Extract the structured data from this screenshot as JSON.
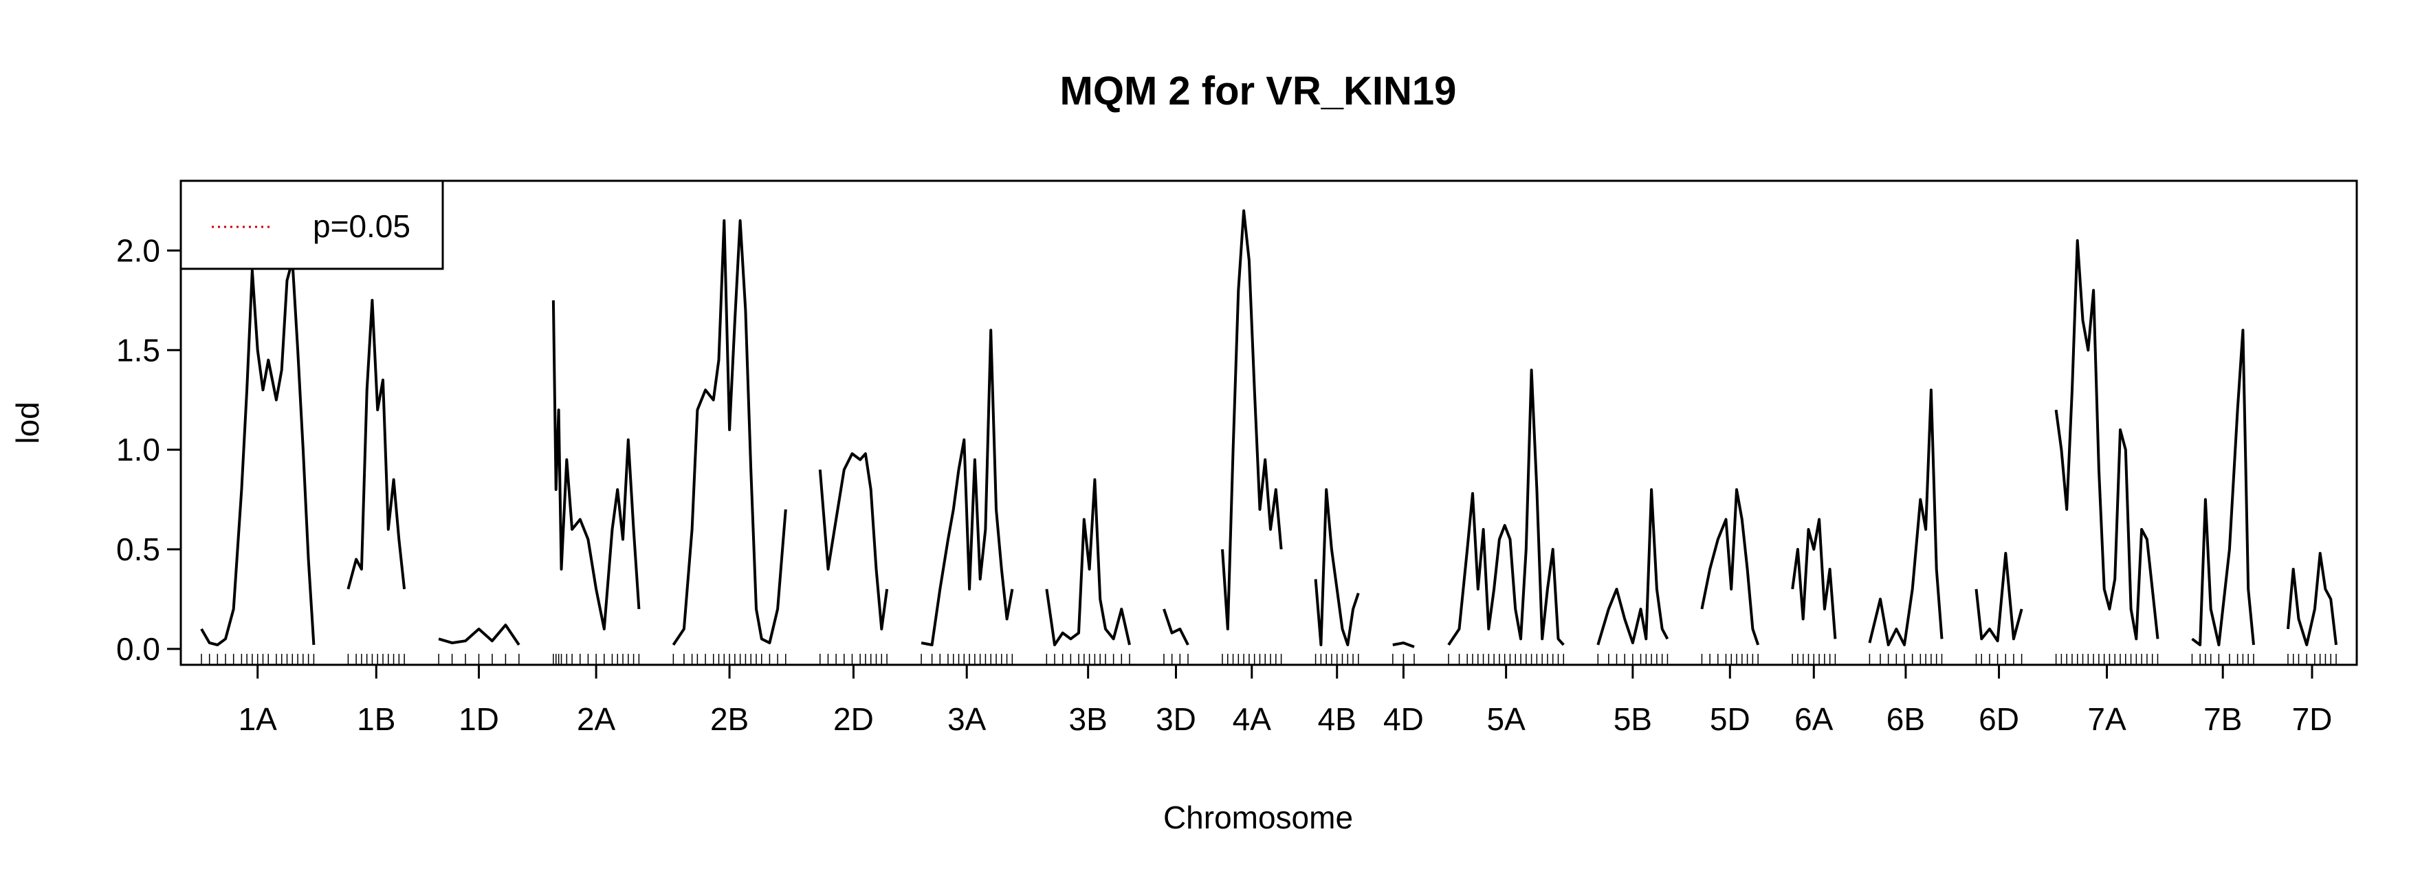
{
  "chart_data": {
    "type": "line",
    "title": "MQM 2 for VR_KIN19",
    "xlabel": "Chromosome",
    "ylabel": "lod",
    "ylim": [
      -0.08,
      2.35
    ],
    "yticks": [
      "0.0",
      "0.5",
      "1.0",
      "1.5",
      "2.0"
    ],
    "legend": {
      "position": "top-left",
      "label": "p=0.05",
      "line_style": "dotted",
      "color": "#cc0000"
    },
    "colors": {
      "line": "#000000",
      "threshold": "#cc0000"
    },
    "chromosomes": [
      {
        "name": "1A",
        "pts": [
          [
            0,
            0.1
          ],
          [
            3,
            0.03
          ],
          [
            6,
            0.02
          ],
          [
            9,
            0.05
          ],
          [
            12,
            0.2
          ],
          [
            15,
            0.8
          ],
          [
            17,
            1.3
          ],
          [
            19,
            1.9
          ],
          [
            21,
            1.5
          ],
          [
            23,
            1.3
          ],
          [
            25,
            1.45
          ],
          [
            28,
            1.25
          ],
          [
            30,
            1.4
          ],
          [
            32,
            1.85
          ],
          [
            34,
            1.95
          ],
          [
            36,
            1.5
          ],
          [
            38,
            1.0
          ],
          [
            40,
            0.45
          ],
          [
            42,
            0.02
          ]
        ]
      },
      {
        "name": "1B",
        "pts": [
          [
            0,
            0.3
          ],
          [
            3,
            0.45
          ],
          [
            5,
            0.4
          ],
          [
            7,
            1.3
          ],
          [
            9,
            1.75
          ],
          [
            11,
            1.2
          ],
          [
            13,
            1.35
          ],
          [
            15,
            0.6
          ],
          [
            17,
            0.85
          ],
          [
            19,
            0.55
          ],
          [
            21,
            0.3
          ]
        ]
      },
      {
        "name": "1D",
        "pts": [
          [
            0,
            0.05
          ],
          [
            5,
            0.03
          ],
          [
            10,
            0.04
          ],
          [
            15,
            0.1
          ],
          [
            20,
            0.04
          ],
          [
            25,
            0.12
          ],
          [
            30,
            0.02
          ]
        ]
      },
      {
        "name": "2A",
        "pts": [
          [
            0,
            1.75
          ],
          [
            1,
            0.8
          ],
          [
            2,
            1.2
          ],
          [
            3,
            0.4
          ],
          [
            5,
            0.95
          ],
          [
            7,
            0.6
          ],
          [
            10,
            0.65
          ],
          [
            13,
            0.55
          ],
          [
            16,
            0.3
          ],
          [
            19,
            0.1
          ],
          [
            22,
            0.6
          ],
          [
            24,
            0.8
          ],
          [
            26,
            0.55
          ],
          [
            28,
            1.05
          ],
          [
            30,
            0.6
          ],
          [
            32,
            0.2
          ]
        ]
      },
      {
        "name": "2B",
        "pts": [
          [
            0,
            0.02
          ],
          [
            4,
            0.1
          ],
          [
            7,
            0.6
          ],
          [
            9,
            1.2
          ],
          [
            12,
            1.3
          ],
          [
            15,
            1.25
          ],
          [
            17,
            1.45
          ],
          [
            19,
            2.15
          ],
          [
            21,
            1.1
          ],
          [
            23,
            1.65
          ],
          [
            25,
            2.15
          ],
          [
            27,
            1.7
          ],
          [
            29,
            0.9
          ],
          [
            31,
            0.2
          ],
          [
            33,
            0.05
          ],
          [
            36,
            0.03
          ],
          [
            39,
            0.2
          ],
          [
            42,
            0.7
          ]
        ]
      },
      {
        "name": "2D",
        "pts": [
          [
            0,
            0.9
          ],
          [
            3,
            0.4
          ],
          [
            6,
            0.65
          ],
          [
            9,
            0.9
          ],
          [
            12,
            0.98
          ],
          [
            15,
            0.95
          ],
          [
            17,
            0.98
          ],
          [
            19,
            0.8
          ],
          [
            21,
            0.4
          ],
          [
            23,
            0.1
          ],
          [
            25,
            0.3
          ]
        ]
      },
      {
        "name": "3A",
        "pts": [
          [
            0,
            0.03
          ],
          [
            4,
            0.02
          ],
          [
            7,
            0.3
          ],
          [
            10,
            0.55
          ],
          [
            12,
            0.7
          ],
          [
            14,
            0.9
          ],
          [
            16,
            1.05
          ],
          [
            18,
            0.3
          ],
          [
            20,
            0.95
          ],
          [
            22,
            0.35
          ],
          [
            24,
            0.6
          ],
          [
            26,
            1.6
          ],
          [
            28,
            0.7
          ],
          [
            30,
            0.4
          ],
          [
            32,
            0.15
          ],
          [
            34,
            0.3
          ]
        ]
      },
      {
        "name": "3B",
        "pts": [
          [
            0,
            0.3
          ],
          [
            3,
            0.02
          ],
          [
            6,
            0.08
          ],
          [
            9,
            0.05
          ],
          [
            12,
            0.08
          ],
          [
            14,
            0.65
          ],
          [
            16,
            0.4
          ],
          [
            18,
            0.85
          ],
          [
            20,
            0.25
          ],
          [
            22,
            0.1
          ],
          [
            25,
            0.05
          ],
          [
            28,
            0.2
          ],
          [
            31,
            0.02
          ]
        ]
      },
      {
        "name": "3D",
        "pts": [
          [
            0,
            0.2
          ],
          [
            3,
            0.08
          ],
          [
            6,
            0.1
          ],
          [
            9,
            0.02
          ]
        ]
      },
      {
        "name": "4A",
        "pts": [
          [
            0,
            0.5
          ],
          [
            2,
            0.1
          ],
          [
            4,
            1.0
          ],
          [
            6,
            1.8
          ],
          [
            8,
            2.2
          ],
          [
            10,
            1.95
          ],
          [
            12,
            1.3
          ],
          [
            14,
            0.7
          ],
          [
            16,
            0.95
          ],
          [
            18,
            0.6
          ],
          [
            20,
            0.8
          ],
          [
            22,
            0.5
          ]
        ]
      },
      {
        "name": "4B",
        "pts": [
          [
            0,
            0.35
          ],
          [
            2,
            0.02
          ],
          [
            4,
            0.8
          ],
          [
            6,
            0.5
          ],
          [
            8,
            0.3
          ],
          [
            10,
            0.1
          ],
          [
            12,
            0.02
          ],
          [
            14,
            0.2
          ],
          [
            16,
            0.28
          ]
        ]
      },
      {
        "name": "4D",
        "pts": [
          [
            0,
            0.02
          ],
          [
            4,
            0.03
          ],
          [
            8,
            0.01
          ]
        ]
      },
      {
        "name": "5A",
        "pts": [
          [
            0,
            0.02
          ],
          [
            4,
            0.1
          ],
          [
            7,
            0.5
          ],
          [
            9,
            0.78
          ],
          [
            11,
            0.3
          ],
          [
            13,
            0.6
          ],
          [
            15,
            0.1
          ],
          [
            17,
            0.3
          ],
          [
            19,
            0.55
          ],
          [
            21,
            0.62
          ],
          [
            23,
            0.55
          ],
          [
            25,
            0.2
          ],
          [
            27,
            0.05
          ],
          [
            29,
            0.5
          ],
          [
            31,
            1.4
          ],
          [
            33,
            0.8
          ],
          [
            35,
            0.05
          ],
          [
            37,
            0.3
          ],
          [
            39,
            0.5
          ],
          [
            41,
            0.05
          ],
          [
            43,
            0.02
          ]
        ]
      },
      {
        "name": "5B",
        "pts": [
          [
            0,
            0.02
          ],
          [
            4,
            0.2
          ],
          [
            7,
            0.3
          ],
          [
            10,
            0.15
          ],
          [
            13,
            0.03
          ],
          [
            16,
            0.2
          ],
          [
            18,
            0.05
          ],
          [
            20,
            0.8
          ],
          [
            22,
            0.3
          ],
          [
            24,
            0.1
          ],
          [
            26,
            0.05
          ]
        ]
      },
      {
        "name": "5D",
        "pts": [
          [
            0,
            0.2
          ],
          [
            3,
            0.4
          ],
          [
            6,
            0.55
          ],
          [
            9,
            0.65
          ],
          [
            11,
            0.3
          ],
          [
            13,
            0.8
          ],
          [
            15,
            0.65
          ],
          [
            17,
            0.4
          ],
          [
            19,
            0.1
          ],
          [
            21,
            0.02
          ]
        ]
      },
      {
        "name": "6A",
        "pts": [
          [
            0,
            0.3
          ],
          [
            2,
            0.5
          ],
          [
            4,
            0.15
          ],
          [
            6,
            0.6
          ],
          [
            8,
            0.5
          ],
          [
            10,
            0.65
          ],
          [
            12,
            0.2
          ],
          [
            14,
            0.4
          ],
          [
            16,
            0.05
          ]
        ]
      },
      {
        "name": "6B",
        "pts": [
          [
            0,
            0.03
          ],
          [
            4,
            0.25
          ],
          [
            7,
            0.02
          ],
          [
            10,
            0.1
          ],
          [
            13,
            0.02
          ],
          [
            16,
            0.3
          ],
          [
            19,
            0.75
          ],
          [
            21,
            0.6
          ],
          [
            23,
            1.3
          ],
          [
            25,
            0.4
          ],
          [
            27,
            0.05
          ]
        ]
      },
      {
        "name": "6D",
        "pts": [
          [
            0,
            0.3
          ],
          [
            2,
            0.05
          ],
          [
            5,
            0.1
          ],
          [
            8,
            0.04
          ],
          [
            11,
            0.48
          ],
          [
            14,
            0.05
          ],
          [
            17,
            0.2
          ]
        ]
      },
      {
        "name": "7A",
        "pts": [
          [
            0,
            1.2
          ],
          [
            2,
            1.0
          ],
          [
            4,
            0.7
          ],
          [
            6,
            1.3
          ],
          [
            8,
            2.05
          ],
          [
            10,
            1.65
          ],
          [
            12,
            1.5
          ],
          [
            14,
            1.8
          ],
          [
            16,
            0.9
          ],
          [
            18,
            0.3
          ],
          [
            20,
            0.2
          ],
          [
            22,
            0.35
          ],
          [
            24,
            1.1
          ],
          [
            26,
            1.0
          ],
          [
            28,
            0.2
          ],
          [
            30,
            0.05
          ],
          [
            32,
            0.6
          ],
          [
            34,
            0.55
          ],
          [
            36,
            0.3
          ],
          [
            38,
            0.05
          ]
        ]
      },
      {
        "name": "7B",
        "pts": [
          [
            0,
            0.05
          ],
          [
            3,
            0.02
          ],
          [
            5,
            0.75
          ],
          [
            7,
            0.2
          ],
          [
            10,
            0.02
          ],
          [
            14,
            0.5
          ],
          [
            17,
            1.2
          ],
          [
            19,
            1.6
          ],
          [
            21,
            0.3
          ],
          [
            23,
            0.02
          ]
        ]
      },
      {
        "name": "7D",
        "pts": [
          [
            0,
            0.1
          ],
          [
            2,
            0.4
          ],
          [
            4,
            0.15
          ],
          [
            7,
            0.02
          ],
          [
            10,
            0.2
          ],
          [
            12,
            0.48
          ],
          [
            14,
            0.3
          ],
          [
            16,
            0.25
          ],
          [
            18,
            0.02
          ]
        ]
      }
    ]
  }
}
